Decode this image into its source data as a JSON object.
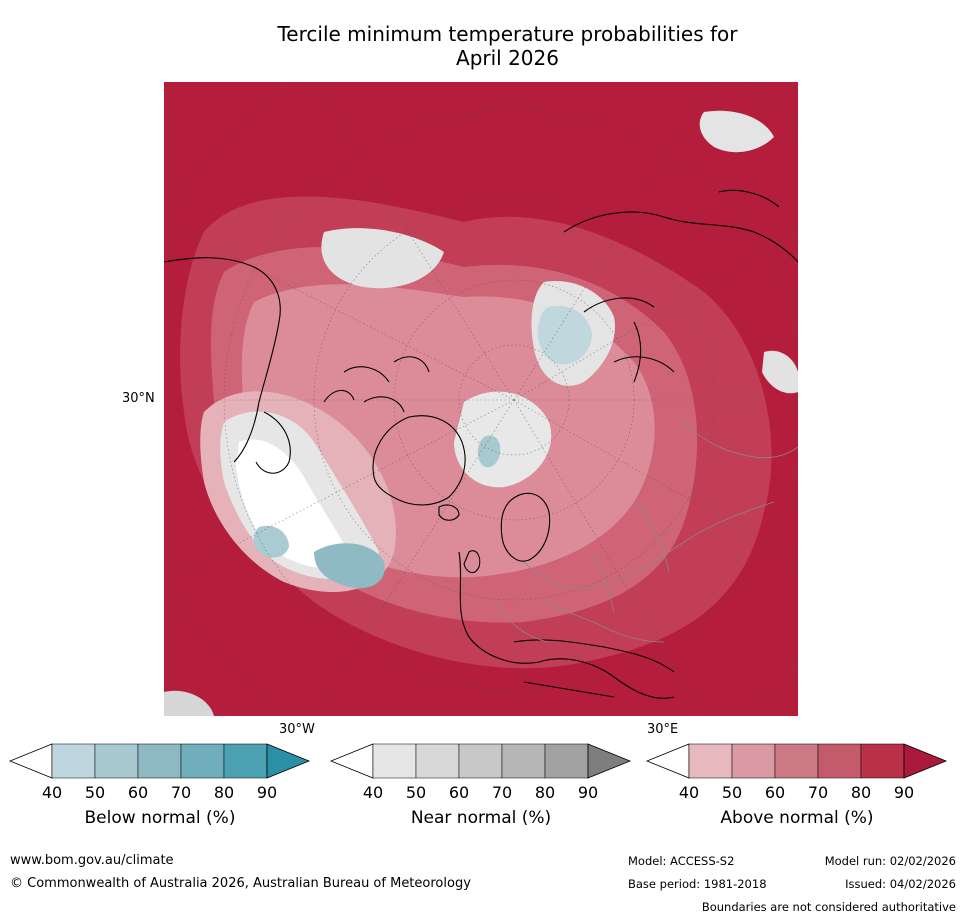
{
  "title": {
    "line1": "Tercile minimum temperature probabilities for",
    "line2": "April 2026"
  },
  "map": {
    "projection": "north-polar-stereographic",
    "labels": {
      "lat_30n": "30°N",
      "lon_30w": "30°W",
      "lon_30e": "30°E"
    }
  },
  "colorbars": [
    {
      "id": "below",
      "title": "Below normal (%)",
      "ticks": [
        "40",
        "50",
        "60",
        "70",
        "80",
        "90"
      ],
      "colors": [
        "#ffffff",
        "#bed6dd",
        "#a9c9d0",
        "#8fb9c2",
        "#71aebb",
        "#4ba1b1",
        "#2b8fa5"
      ]
    },
    {
      "id": "near",
      "title": "Near normal (%)",
      "ticks": [
        "40",
        "50",
        "60",
        "70",
        "80",
        "90"
      ],
      "colors": [
        "#ffffff",
        "#e6e6e6",
        "#d8d8d8",
        "#c8c8c8",
        "#b6b6b6",
        "#a2a2a2",
        "#7e7e7e"
      ]
    },
    {
      "id": "above",
      "title": "Above normal (%)",
      "ticks": [
        "40",
        "50",
        "60",
        "70",
        "80",
        "90"
      ],
      "colors": [
        "#ffffff",
        "#e8b8bf",
        "#d99aa3",
        "#cc7984",
        "#c35b6a",
        "#ba3147",
        "#aa1b3b"
      ]
    }
  ],
  "footer": {
    "website": "www.bom.gov.au/climate",
    "copyright": "© Commonwealth of Australia 2026, Australian Bureau of Meteorology",
    "model": "Model: ACCESS-S2",
    "model_run": "Model run: 02/02/2026",
    "base_period": "Base period: 1981-2018",
    "issued": "Issued: 04/02/2026",
    "disclaimer": "Boundaries are not considered authoritative"
  }
}
